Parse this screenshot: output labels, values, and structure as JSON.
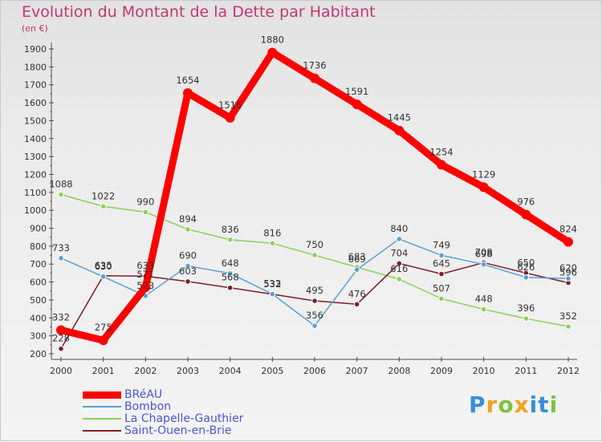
{
  "header": {
    "title": "Evolution du Montant de la Dette par Habitant",
    "unit": "(en €)"
  },
  "logo": {
    "letters": [
      "P",
      "r",
      "o",
      "x",
      "i",
      "t",
      "i"
    ],
    "colors": [
      "#3a8fd6",
      "#f2a21d",
      "#7fc241",
      "#f2a21d",
      "#3a8fd6",
      "#3a8fd6",
      "#7fc241"
    ]
  },
  "chart_data": {
    "type": "line",
    "title": "Evolution du Montant de la Dette par Habitant",
    "ylabel": "(en €)",
    "xlabel": "",
    "x": [
      "2000",
      "2001",
      "2002",
      "2003",
      "2004",
      "2005",
      "2006",
      "2007",
      "2008",
      "2009",
      "2010",
      "2011",
      "2012"
    ],
    "ylim": [
      200,
      1900
    ],
    "yticks": [
      200,
      300,
      400,
      500,
      600,
      700,
      800,
      900,
      1000,
      1100,
      1200,
      1300,
      1400,
      1500,
      1600,
      1700,
      1800,
      1900
    ],
    "grid": false,
    "legend_position": "bottom-left",
    "series": [
      {
        "name": "La Chapelle-Gauthier",
        "color": "#8dd05a",
        "values": [
          1088,
          1022,
          990,
          894,
          836,
          816,
          750,
          683,
          616,
          507,
          448,
          396,
          352
        ]
      },
      {
        "name": "Saint-Ouen-en-Brie",
        "color": "#7a1f2a",
        "values": [
          228,
          635,
          633,
          603,
          568,
          532,
          495,
          476,
          704,
          645,
          708,
          650,
          596
        ]
      },
      {
        "name": "Bombon",
        "color": "#5aa1d6",
        "values": [
          733,
          630,
          523,
          690,
          648,
          533,
          356,
          669,
          840,
          749,
          698,
          626,
          620
        ]
      },
      {
        "name": "BRéAU",
        "color": "#ff0000",
        "values": [
          332,
          275,
          571,
          1654,
          1516,
          1880,
          1736,
          1591,
          1445,
          1254,
          1129,
          976,
          824
        ]
      }
    ]
  },
  "legend": {
    "items": [
      {
        "label": "BRéAU",
        "color": "#ff0000",
        "text_color": "#4a57d8",
        "stroke": 9
      },
      {
        "label": "Bombon",
        "color": "#5aa1d6",
        "text_color": "#4a57d8",
        "stroke": 2
      },
      {
        "label": "La Chapelle-Gauthier",
        "color": "#8dd05a",
        "text_color": "#4a57d8",
        "stroke": 2
      },
      {
        "label": "Saint-Ouen-en-Brie",
        "color": "#7a1f2a",
        "text_color": "#4a57d8",
        "stroke": 2
      }
    ]
  }
}
